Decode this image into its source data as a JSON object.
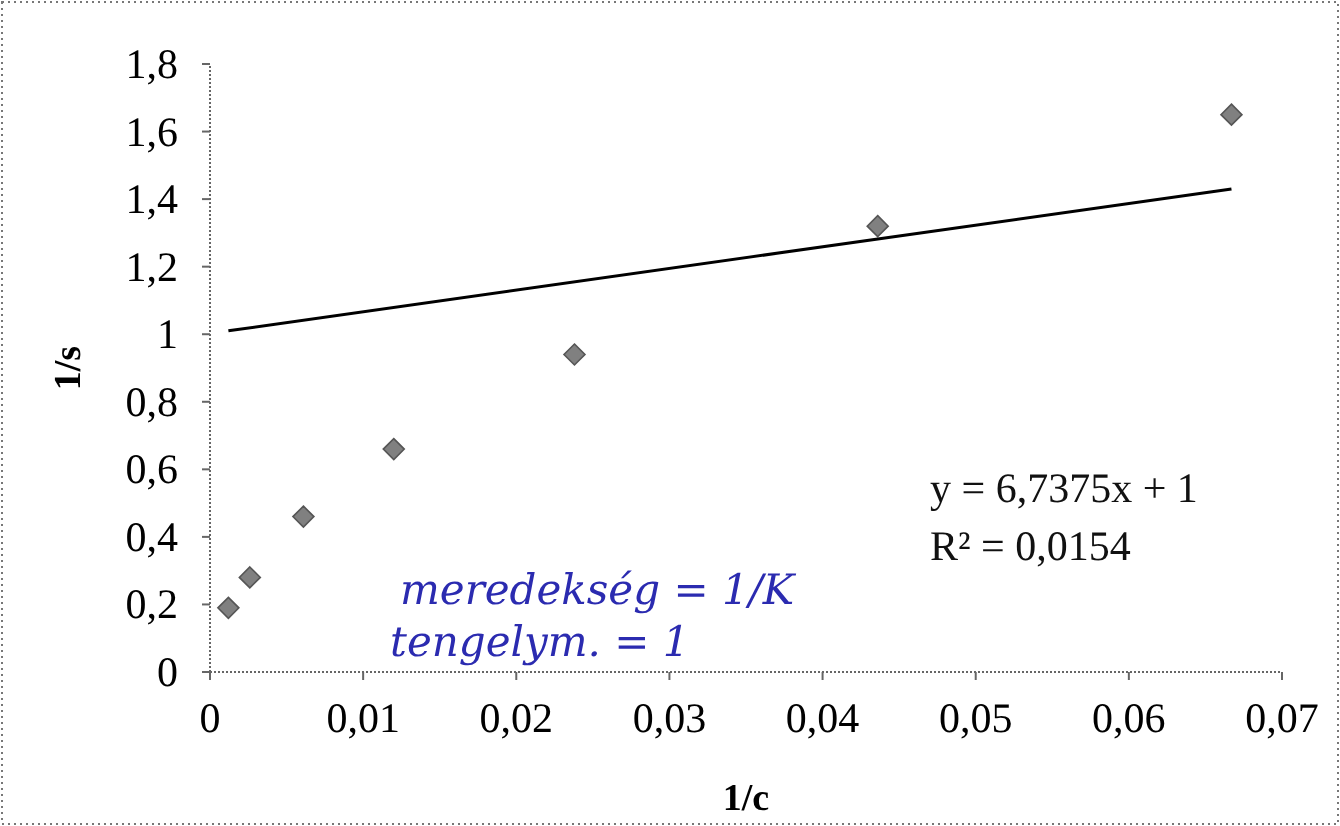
{
  "chart_data": {
    "type": "scatter",
    "xlabel": "1/c",
    "ylabel": "1/s",
    "xlim": [
      0,
      0.07
    ],
    "xticks": [
      {
        "value": 0,
        "label": "0"
      },
      {
        "value": 0.01,
        "label": "0,01"
      },
      {
        "value": 0.02,
        "label": "0,02"
      },
      {
        "value": 0.03,
        "label": "0,03"
      },
      {
        "value": 0.04,
        "label": "0,04"
      },
      {
        "value": 0.05,
        "label": "0,05"
      },
      {
        "value": 0.06,
        "label": "0,06"
      },
      {
        "value": 0.07,
        "label": "0,07"
      }
    ],
    "ylim": [
      0,
      1.8
    ],
    "yticks": [
      {
        "value": 0,
        "label": "0"
      },
      {
        "value": 0.2,
        "label": "0,2"
      },
      {
        "value": 0.4,
        "label": "0,4"
      },
      {
        "value": 0.6,
        "label": "0,6"
      },
      {
        "value": 0.8,
        "label": "0,8"
      },
      {
        "value": 1,
        "label": "1"
      },
      {
        "value": 1.2,
        "label": "1,2"
      },
      {
        "value": 1.4,
        "label": "1,4"
      },
      {
        "value": 1.6,
        "label": "1,6"
      },
      {
        "value": 1.8,
        "label": "1,8"
      }
    ],
    "grid": false,
    "series": [
      {
        "marker": "diamond",
        "color": "#808080",
        "x": [
          0.0012,
          0.0026,
          0.0061,
          0.012,
          0.0238,
          0.0436,
          0.0667
        ],
        "values": [
          0.19,
          0.28,
          0.46,
          0.66,
          0.94,
          1.32,
          1.65
        ]
      },
      {
        "type": "line",
        "marker": "none",
        "line_style": "solid",
        "color": "#000000",
        "x": [
          0.0012,
          0.0667
        ],
        "values": [
          1.01,
          1.43
        ]
      }
    ],
    "annotations": [
      "y = 6,7375x + 1",
      "R² = 0,0154",
      "meredekség = 1/K",
      "tengelym. = 1"
    ]
  }
}
